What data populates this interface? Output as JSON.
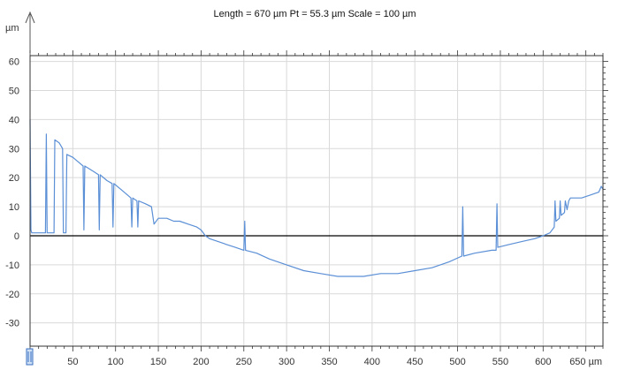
{
  "header": {
    "summary": "Length = 670 µm  Pt = 55.3 µm  Scale = 100 µm",
    "y_unit": "µm",
    "x_unit": "µm"
  },
  "colors": {
    "profile_line": "#5b8fd6",
    "zero_line": "#000000",
    "grid": "#d9d9d9",
    "frame": "#333333",
    "cursor_marker": "#3a6fc2"
  },
  "chart_data": {
    "type": "line",
    "title": "Length = 670 µm  Pt = 55.3 µm  Scale = 100 µm",
    "xlabel": "",
    "ylabel": "µm",
    "xlim": [
      0,
      670
    ],
    "ylim": [
      -38,
      62
    ],
    "x_ticks": [
      50,
      100,
      150,
      200,
      250,
      300,
      350,
      400,
      450,
      500,
      550,
      600,
      650
    ],
    "x_tick_labels": [
      "50",
      "100",
      "150",
      "200",
      "250",
      "300",
      "350",
      "400",
      "450",
      "500",
      "550",
      "600",
      "650 µm"
    ],
    "y_ticks": [
      60,
      50,
      40,
      30,
      20,
      10,
      0,
      -10,
      -20,
      -30
    ],
    "y_tick_labels": [
      "60",
      "50",
      "40",
      "30",
      "20",
      "10",
      "0",
      "-10",
      "-20",
      "-30"
    ],
    "grid": true,
    "reference_line_y": 0,
    "series": [
      {
        "values": [
          [
            0,
            40
          ],
          [
            1,
            2
          ],
          [
            2,
            1
          ],
          [
            12,
            1
          ],
          [
            18,
            1
          ],
          [
            19,
            35
          ],
          [
            20,
            1
          ],
          [
            24,
            1
          ],
          [
            28,
            1
          ],
          [
            29,
            33
          ],
          [
            34,
            32
          ],
          [
            38,
            30
          ],
          [
            39,
            1
          ],
          [
            42,
            1
          ],
          [
            43,
            28
          ],
          [
            50,
            27
          ],
          [
            58,
            25
          ],
          [
            62,
            24
          ],
          [
            63,
            2
          ],
          [
            64,
            24
          ],
          [
            75,
            22
          ],
          [
            80,
            21
          ],
          [
            81,
            2
          ],
          [
            82,
            21
          ],
          [
            90,
            19
          ],
          [
            96,
            18
          ],
          [
            97,
            3
          ],
          [
            98,
            18
          ],
          [
            110,
            15
          ],
          [
            118,
            13
          ],
          [
            119,
            3
          ],
          [
            120,
            13
          ],
          [
            125,
            12
          ],
          [
            126,
            3
          ],
          [
            127,
            12
          ],
          [
            135,
            11
          ],
          [
            142,
            10
          ],
          [
            145,
            4
          ],
          [
            150,
            6
          ],
          [
            160,
            6
          ],
          [
            168,
            5
          ],
          [
            175,
            5
          ],
          [
            185,
            4
          ],
          [
            195,
            3
          ],
          [
            200,
            2
          ],
          [
            205,
            0
          ],
          [
            210,
            -1
          ],
          [
            220,
            -2
          ],
          [
            230,
            -3
          ],
          [
            240,
            -4
          ],
          [
            250,
            -5
          ],
          [
            251,
            5
          ],
          [
            252,
            -5
          ],
          [
            265,
            -6
          ],
          [
            280,
            -8
          ],
          [
            300,
            -10
          ],
          [
            320,
            -12
          ],
          [
            340,
            -13
          ],
          [
            360,
            -14
          ],
          [
            375,
            -14
          ],
          [
            390,
            -14
          ],
          [
            410,
            -13
          ],
          [
            430,
            -13
          ],
          [
            450,
            -12
          ],
          [
            470,
            -11
          ],
          [
            490,
            -9
          ],
          [
            505,
            -7
          ],
          [
            506,
            10
          ],
          [
            507,
            -7
          ],
          [
            520,
            -6
          ],
          [
            540,
            -5
          ],
          [
            545,
            -5
          ],
          [
            546,
            11
          ],
          [
            547,
            -4
          ],
          [
            560,
            -3
          ],
          [
            575,
            -2
          ],
          [
            590,
            -1
          ],
          [
            600,
            0
          ],
          [
            608,
            1
          ],
          [
            613,
            3
          ],
          [
            614,
            12
          ],
          [
            615,
            5
          ],
          [
            619,
            6
          ],
          [
            620,
            12
          ],
          [
            621,
            7
          ],
          [
            625,
            8
          ],
          [
            626,
            12
          ],
          [
            628,
            9
          ],
          [
            630,
            12
          ],
          [
            632,
            13
          ],
          [
            645,
            13
          ],
          [
            655,
            14
          ],
          [
            665,
            15
          ],
          [
            668,
            17
          ],
          [
            670,
            16
          ]
        ]
      }
    ]
  }
}
